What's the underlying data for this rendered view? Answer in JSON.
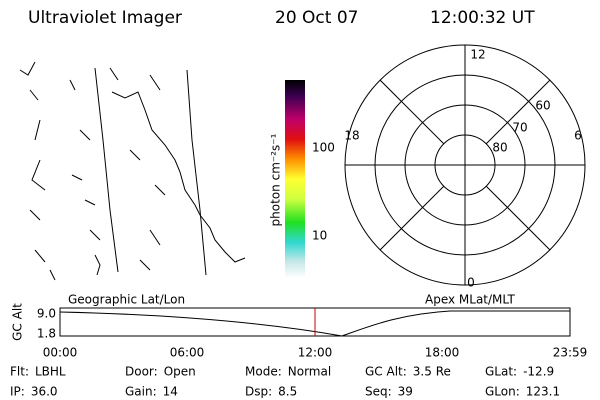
{
  "header": {
    "instrument": "Ultraviolet Imager",
    "date": "20 Oct 07",
    "time": "12:00:32 UT"
  },
  "colorbar": {
    "unit": "photon cm⁻²s⁻¹",
    "ticks": [
      "100",
      "10"
    ]
  },
  "polar": {
    "mlt_labels": [
      "12",
      "18",
      "6",
      "0"
    ],
    "lat_labels": [
      "60",
      "70",
      "80"
    ]
  },
  "timeline": {
    "axis_label": "GC Alt",
    "y_labels": [
      "9.0",
      "1.8"
    ],
    "left_title": "Geographic Lat/Lon",
    "right_title": "Apex MLat/MLT",
    "times": [
      "00:00",
      "06:00",
      "12:00",
      "18:00",
      "23:59"
    ]
  },
  "status": {
    "rows": [
      [
        {
          "label": "Flt:",
          "value": "LBHL"
        },
        {
          "label": "Door:",
          "value": "Open"
        },
        {
          "label": "Mode:",
          "value": "Normal"
        },
        {
          "label": "GC Alt:",
          "value": "3.5 Re"
        },
        {
          "label": "GLat:",
          "value": "-12.9"
        }
      ],
      [
        {
          "label": "IP:",
          "value": "36.0"
        },
        {
          "label": "Gain:",
          "value": "14"
        },
        {
          "label": "Dsp:",
          "value": "8.5"
        },
        {
          "label": "Seq:",
          "value": "39"
        },
        {
          "label": "GLon:",
          "value": "123.1"
        }
      ]
    ]
  }
}
